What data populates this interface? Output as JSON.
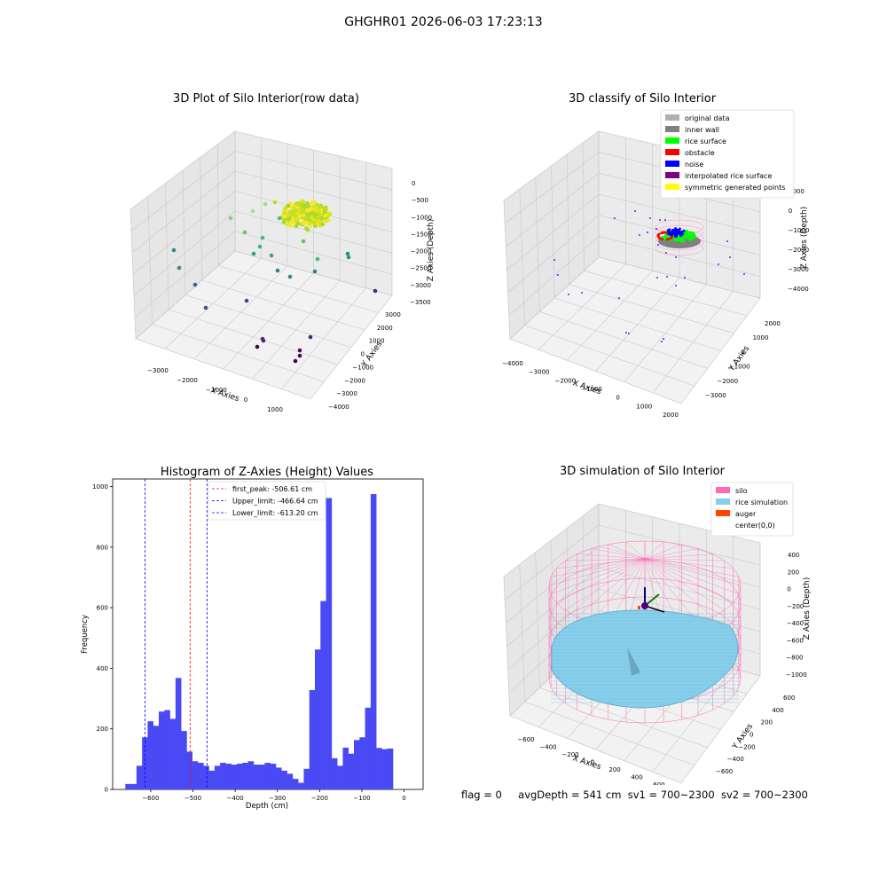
{
  "suptitle": "GHGHR01 2026-06-03 17:23:13",
  "panels": {
    "raw": {
      "title": "3D Plot of Silo Interior(row data)",
      "xlabel": "X Axies",
      "ylabel": "Y Axies",
      "zlabel": "Z Axies (Depth)",
      "xticks": [
        "−3000",
        "−2000",
        "−1000",
        "0",
        "1000"
      ],
      "yticks": [
        "3000",
        "2000",
        "1000",
        "0",
        "−1000",
        "−2000",
        "−3000",
        "−4000"
      ],
      "zticks": [
        "0",
        "−500",
        "−1000",
        "−1500",
        "−2000",
        "−2500",
        "−3000",
        "−3500"
      ]
    },
    "classify": {
      "title": "3D classify of Silo Interior",
      "xlabel": "X Axies",
      "ylabel": "Y Axies",
      "zlabel": "Z Axies (Depth)",
      "xticks": [
        "−4000",
        "−3000",
        "−2000",
        "−1000",
        "0",
        "1000",
        "2000"
      ],
      "yticks": [
        "2000",
        "1000",
        "0",
        "−1000",
        "−2000",
        "−3000"
      ],
      "zticks": [
        "1000",
        "0",
        "−1000",
        "−2000",
        "−3000",
        "−4000"
      ],
      "legend": [
        {
          "label": "original data",
          "color": "#b0b0b0"
        },
        {
          "label": "inner wall",
          "color": "#808080"
        },
        {
          "label": "rice surface",
          "color": "#00ff00"
        },
        {
          "label": "obstacle",
          "color": "#ff0000"
        },
        {
          "label": "noise",
          "color": "#0000ff"
        },
        {
          "label": "interpolated rice surface",
          "color": "#800080"
        },
        {
          "label": "symmetric generated points",
          "color": "#ffff00"
        }
      ]
    },
    "simulation": {
      "title": "3D simulation of Silo Interior",
      "xlabel": "X Axies",
      "ylabel": "Y Axies",
      "zlabel": "Z Axies (Depth)",
      "xticks": [
        "−600",
        "−400",
        "−200",
        "0",
        "200",
        "400",
        "600"
      ],
      "yticks": [
        "600",
        "400",
        "200",
        "0",
        "−200",
        "−400",
        "−600"
      ],
      "zticks": [
        "400",
        "200",
        "0",
        "−200",
        "−400",
        "−600",
        "−800",
        "−1000"
      ],
      "legend": [
        {
          "label": "silo",
          "color": "#ff69b4"
        },
        {
          "label": "rice simulation",
          "color": "#87ceeb"
        },
        {
          "label": "auger",
          "color": "#ff4500"
        },
        {
          "label": "center(0,0)",
          "color": "#ffffff"
        }
      ]
    }
  },
  "status": {
    "flag": "flag = 0",
    "avg_depth": "avgDepth = 541 cm",
    "sv1": "sv1 = 700~2300",
    "sv2": "sv2 = 700~2300"
  },
  "chart_data": [
    {
      "type": "bar",
      "title": "Histogram of Z-Axies (Height) Values",
      "xlabel": "Depth (cm)",
      "ylabel": "Frequency",
      "xlim": [
        -690,
        45
      ],
      "ylim": [
        0,
        1025
      ],
      "bin_start": -660,
      "bin_width": 13.2,
      "bar_color": "#4a4af5",
      "values": [
        18,
        18,
        78,
        172,
        225,
        210,
        257,
        262,
        233,
        368,
        193,
        125,
        93,
        88,
        78,
        62,
        78,
        88,
        85,
        82,
        85,
        88,
        93,
        82,
        82,
        88,
        85,
        72,
        62,
        52,
        35,
        22,
        68,
        328,
        462,
        622,
        962,
        103,
        78,
        138,
        118,
        163,
        172,
        270,
        975,
        137,
        133,
        135
      ],
      "xticks": [
        -600,
        -500,
        -400,
        -300,
        -200,
        -100,
        0
      ],
      "yticks": [
        0,
        200,
        400,
        600,
        800,
        1000
      ],
      "vlines": [
        {
          "label": "first_peak: -506.61 cm",
          "x": -506.61,
          "color": "#ff0000"
        },
        {
          "label": "Upper_limit: -466.64 cm",
          "x": -466.64,
          "color": "#0000ff"
        },
        {
          "label": "Lower_limit: -613.20 cm",
          "x": -613.2,
          "color": "#0000ff"
        }
      ],
      "grid": false,
      "legend_position": "top-center"
    }
  ]
}
